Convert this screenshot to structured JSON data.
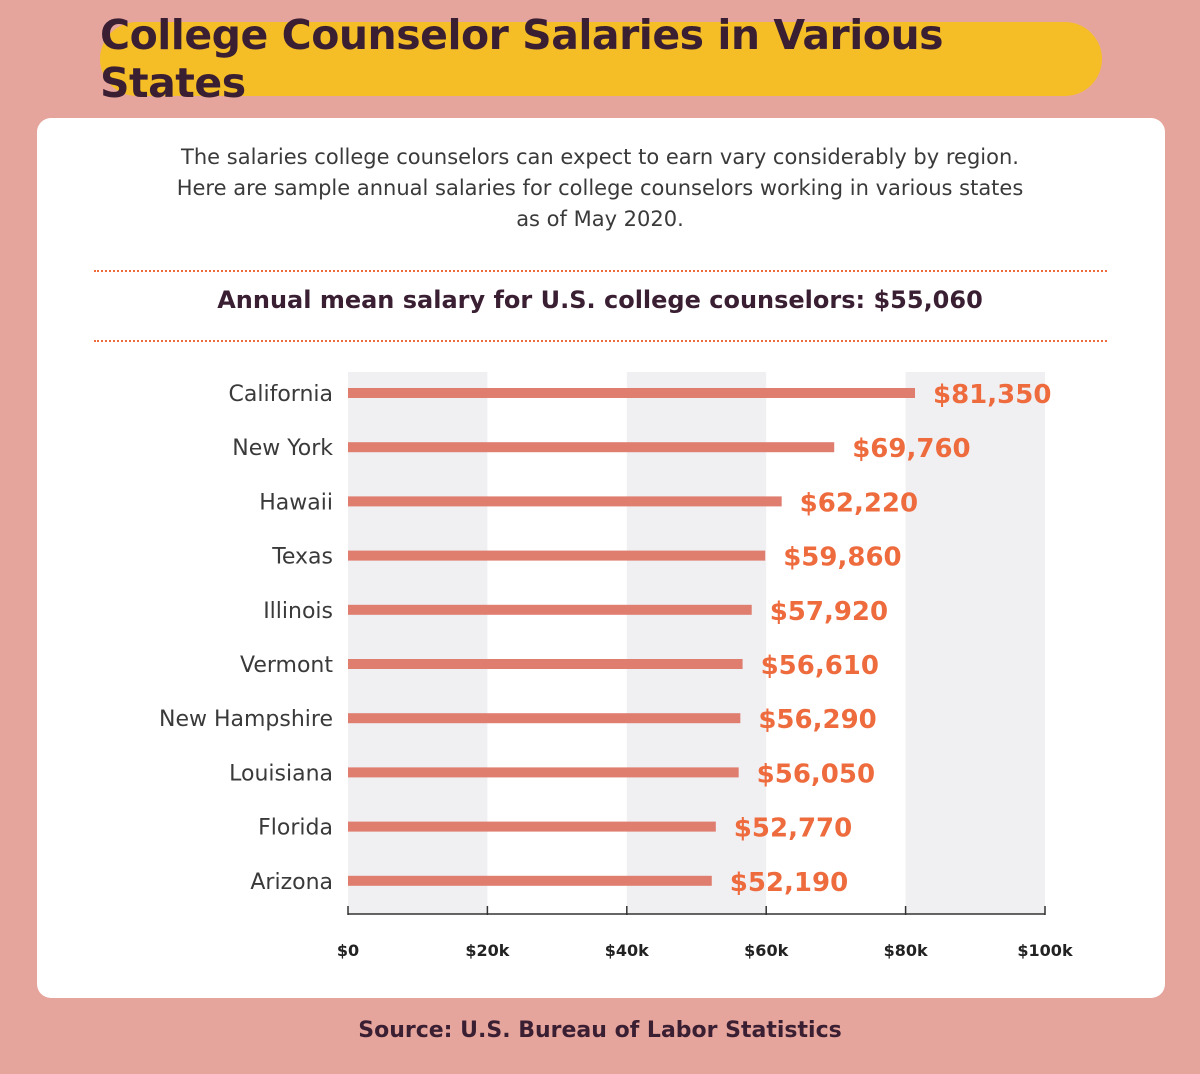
{
  "title": "College Counselor Salaries in Various States",
  "intro_lines": [
    "The salaries college counselors can expect to earn vary considerably by region.",
    "Here are sample annual salaries for college counselors working in various states",
    "as of May 2020."
  ],
  "mean_salary_text": "Annual mean salary for U.S. college counselors: $55,060",
  "source": "Source: U.S. Bureau of Labor Statistics",
  "colors": {
    "background": "#e6a59c",
    "title_pill": "#f6be26",
    "bar": "#df7d6f",
    "value_label": "#ee6b3e",
    "band": "#f0eff2",
    "dark_text": "#3a1f33"
  },
  "chart_data": {
    "type": "bar",
    "orientation": "horizontal",
    "categories": [
      "California",
      "New York",
      "Hawaii",
      "Texas",
      "Illinois",
      "Vermont",
      "New Hampshire",
      "Louisiana",
      "Florida",
      "Arizona"
    ],
    "values": [
      81350,
      69760,
      62220,
      59860,
      57920,
      56610,
      56290,
      56050,
      52770,
      52190
    ],
    "value_labels": [
      "$81,350",
      "$69,760",
      "$62,220",
      "$59,860",
      "$57,920",
      "$56,610",
      "$56,290",
      "$56,050",
      "$52,770",
      "$52,190"
    ],
    "xlim": [
      0,
      100000
    ],
    "x_ticks": [
      0,
      20000,
      40000,
      60000,
      80000,
      100000
    ],
    "x_tick_labels": [
      "$0",
      "$20k",
      "$40k",
      "$60k",
      "$80k",
      "$100k"
    ],
    "grid": "alternating vertical bands"
  }
}
